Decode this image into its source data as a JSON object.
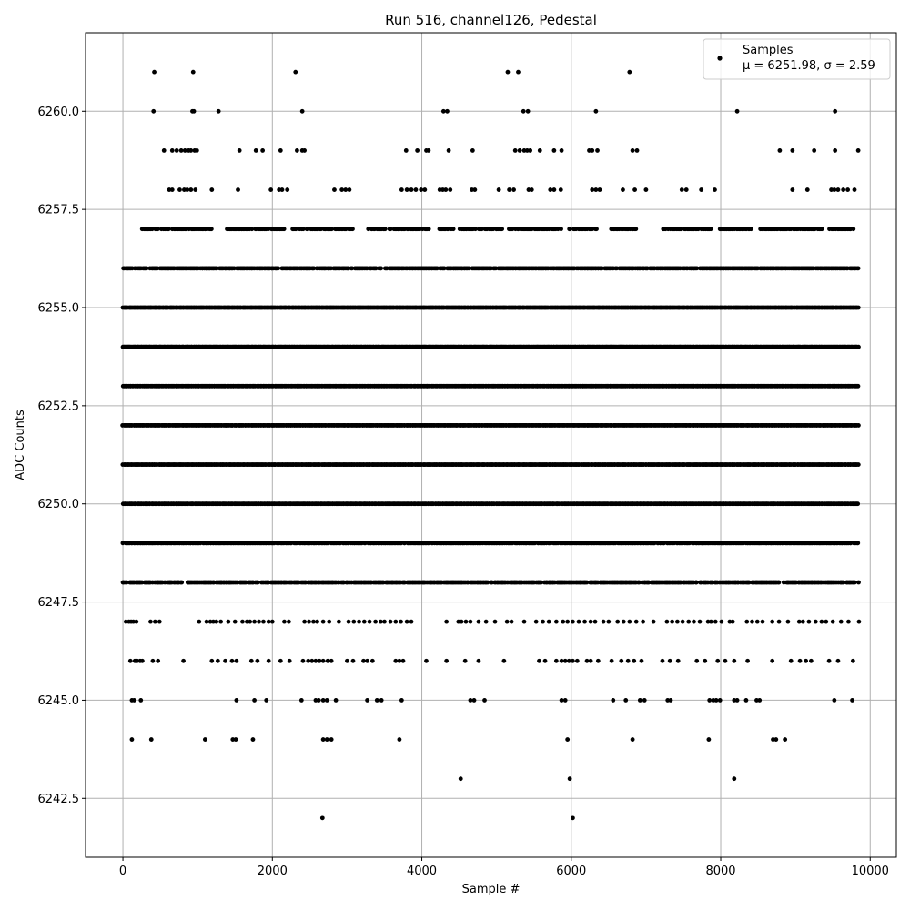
{
  "chart_data": {
    "type": "scatter",
    "title": "Run 516, channel126, Pedestal",
    "xlabel": "Sample #",
    "ylabel": "ADC Counts",
    "xlim": [
      -500,
      10350
    ],
    "ylim": [
      6241,
      6262
    ],
    "xticks": [
      0,
      2000,
      4000,
      6000,
      8000,
      10000
    ],
    "yticks": [
      6242.5,
      6245.0,
      6247.5,
      6250.0,
      6252.5,
      6255.0,
      6257.5,
      6260.0
    ],
    "xtick_labels": [
      "0",
      "2000",
      "4000",
      "6000",
      "8000",
      "10000"
    ],
    "ytick_labels": [
      "6242.5",
      "6245.0",
      "6247.5",
      "6250.0",
      "6252.5",
      "6255.0",
      "6257.5",
      "6260.0"
    ],
    "grid": true,
    "legend_position": "top-right",
    "marker_color": "#000000",
    "series": [
      {
        "name": "Samples",
        "stats_label": "μ = 6251.98, σ = 2.59",
        "x_range": [
          0,
          9850
        ],
        "levels": [
          {
            "y": 6261,
            "x": [
              420,
              940,
              2310,
              5150,
              5290,
              6780
            ]
          },
          {
            "y": 6260,
            "x": [
              410,
              930,
              950,
              1280,
              2400,
              4290,
              4340,
              5360,
              5420,
              6330,
              8220,
              9530
            ]
          },
          {
            "y": 6259,
            "x": [
              550,
              660,
              720,
              780,
              830,
              880,
              910,
              960,
              990,
              1560,
              1780,
              1870,
              2110,
              2330,
              2400,
              2430,
              3790,
              3940,
              4060,
              4090,
              4360,
              4680,
              5250,
              5310,
              5370,
              5410,
              5450,
              5580,
              5770,
              5870,
              6240,
              6280,
              6350,
              6820,
              6880,
              8790,
              8960,
              9250,
              9530,
              9840
            ]
          },
          {
            "y": 6258,
            "x": [
              620,
              660,
              760,
              820,
              860,
              910,
              970,
              1190,
              1540,
              1980,
              2090,
              2130,
              2200,
              2830,
              2930,
              2980,
              3030,
              3730,
              3800,
              3860,
              3920,
              3990,
              4040,
              4240,
              4280,
              4320,
              4380,
              4670,
              4710,
              5030,
              5170,
              5230,
              5430,
              5470,
              5720,
              5770,
              5860,
              6280,
              6330,
              6380,
              6690,
              6850,
              7000,
              7480,
              7540,
              7740,
              7920,
              8960,
              9160,
              9480,
              9520,
              9570,
              9640,
              9700,
              9790
            ]
          },
          {
            "y": 6257,
            "x_ranges": [
              [
                260,
                1200
              ],
              [
                1390,
                2160
              ],
              [
                2270,
                3080
              ],
              [
                3290,
                4110
              ],
              [
                4240,
                4430
              ],
              [
                4510,
                5090
              ],
              [
                5170,
                5860
              ],
              [
                5970,
                6390
              ],
              [
                6530,
                6880
              ],
              [
                7230,
                7900
              ],
              [
                7990,
                8420
              ],
              [
                8520,
                9360
              ],
              [
                9440,
                9780
              ]
            ],
            "density": 0.8
          },
          {
            "y": 6256,
            "x_ranges": [
              [
                0,
                9850
              ]
            ],
            "density": 0.9
          },
          {
            "y": 6255,
            "x_ranges": [
              [
                0,
                9850
              ]
            ],
            "density": 1.0
          },
          {
            "y": 6254,
            "x_ranges": [
              [
                0,
                9850
              ]
            ],
            "density": 1.0
          },
          {
            "y": 6253,
            "x_ranges": [
              [
                0,
                9850
              ]
            ],
            "density": 1.0
          },
          {
            "y": 6252,
            "x_ranges": [
              [
                0,
                9850
              ]
            ],
            "density": 1.0
          },
          {
            "y": 6251,
            "x_ranges": [
              [
                0,
                9850
              ]
            ],
            "density": 1.0
          },
          {
            "y": 6250,
            "x_ranges": [
              [
                0,
                9850
              ]
            ],
            "density": 1.0
          },
          {
            "y": 6249,
            "x_ranges": [
              [
                0,
                9850
              ]
            ],
            "density": 0.95
          },
          {
            "y": 6248,
            "x_ranges": [
              [
                0,
                9850
              ]
            ],
            "density": 0.85
          },
          {
            "y": 6247,
            "x": [
              40,
              80,
              110,
              140,
              180,
              370,
              430,
              490,
              1020,
              1120,
              1170,
              1210,
              1250,
              1310,
              1410,
              1500,
              1600,
              1660,
              1700,
              1760,
              1820,
              1880,
              1950,
              2000,
              2160,
              2220,
              2430,
              2490,
              2550,
              2600,
              2680,
              2760,
              2890,
              3020,
              3090,
              3160,
              3230,
              3300,
              3380,
              3450,
              3500,
              3580,
              3650,
              3720,
              3800,
              3860,
              4330,
              4490,
              4530,
              4590,
              4650,
              4760,
              4860,
              4980,
              5140,
              5200,
              5370,
              5530,
              5620,
              5700,
              5800,
              5890,
              5950,
              6020,
              6100,
              6180,
              6260,
              6320,
              6430,
              6500,
              6620,
              6700,
              6780,
              6870,
              6960,
              7100,
              7280,
              7350,
              7420,
              7490,
              7570,
              7640,
              7720,
              7830,
              7870,
              7930,
              8010,
              8120,
              8160,
              8350,
              8420,
              8490,
              8560,
              8690,
              8780,
              8900,
              9050,
              9100,
              9180,
              9270,
              9350,
              9410,
              9500,
              9610,
              9710,
              9850
            ]
          },
          {
            "y": 6246,
            "x": [
              100,
              160,
              190,
              230,
              260,
              400,
              470,
              810,
              1190,
              1270,
              1370,
              1460,
              1520,
              1720,
              1800,
              1950,
              2110,
              2230,
              2410,
              2480,
              2530,
              2580,
              2630,
              2680,
              2740,
              2790,
              3000,
              3080,
              3220,
              3270,
              3340,
              3650,
              3700,
              3750,
              4060,
              4330,
              4580,
              4760,
              5100,
              5570,
              5650,
              5800,
              5870,
              5920,
              5970,
              6020,
              6080,
              6210,
              6260,
              6360,
              6540,
              6670,
              6760,
              6840,
              6940,
              7220,
              7320,
              7430,
              7680,
              7790,
              7960,
              8060,
              8180,
              8360,
              8690,
              8940,
              9060,
              9140,
              9210,
              9450,
              9570,
              9770
            ]
          },
          {
            "y": 6245,
            "x": [
              120,
              150,
              240,
              1520,
              1760,
              1920,
              2390,
              2580,
              2620,
              2680,
              2730,
              2850,
              3270,
              3400,
              3460,
              3730,
              4650,
              4700,
              4840,
              5870,
              5920,
              6560,
              6730,
              6920,
              6980,
              7290,
              7330,
              7850,
              7900,
              7940,
              7990,
              8180,
              8220,
              8340,
              8480,
              8520,
              9520,
              9760
            ]
          },
          {
            "y": 6244,
            "x": [
              120,
              380,
              1100,
              1470,
              1510,
              1740,
              2680,
              2730,
              2790,
              3700,
              5950,
              6820,
              7840,
              8700,
              8740,
              8860
            ]
          },
          {
            "y": 6243,
            "x": [
              4520,
              5980,
              8180
            ]
          },
          {
            "y": 6242,
            "x": [
              2670,
              6020
            ]
          }
        ]
      }
    ]
  }
}
